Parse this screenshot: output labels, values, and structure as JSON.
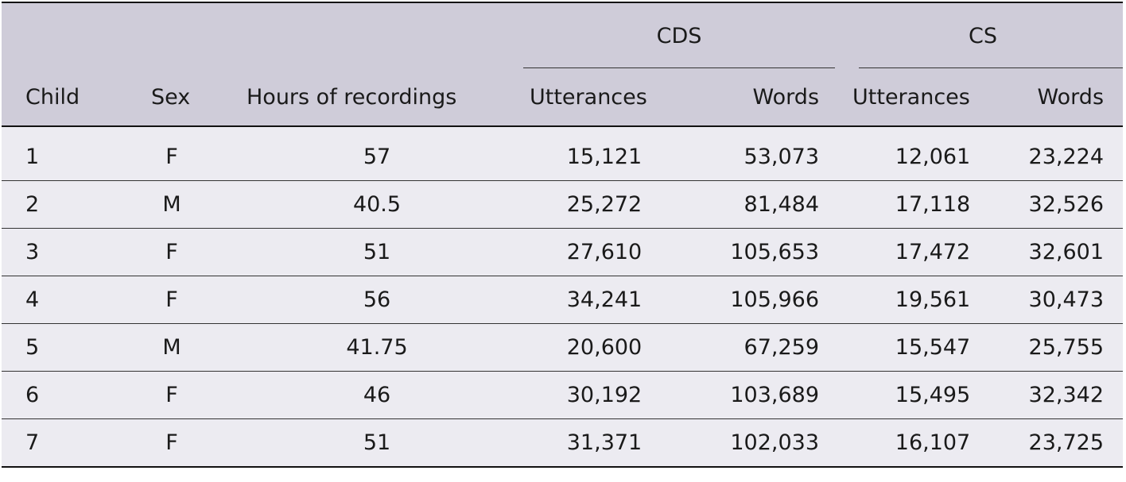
{
  "table": {
    "headers": {
      "child": "Child",
      "sex": "Sex",
      "hours": "Hours of recordings",
      "group_cds": "CDS",
      "group_cs": "CS",
      "cds_utterances": "Utterances",
      "cds_words": "Words",
      "cs_utterances": "Utterances",
      "cs_words": "Words"
    },
    "rows": [
      {
        "child": "1",
        "sex": "F",
        "hours": "57",
        "cds_utt": "15,121",
        "cds_words": "53,073",
        "cs_utt": "12,061",
        "cs_words": "23,224"
      },
      {
        "child": "2",
        "sex": "M",
        "hours": "40.5",
        "cds_utt": "25,272",
        "cds_words": "81,484",
        "cs_utt": "17,118",
        "cs_words": "32,526"
      },
      {
        "child": "3",
        "sex": "F",
        "hours": "51",
        "cds_utt": "27,610",
        "cds_words": "105,653",
        "cs_utt": "17,472",
        "cs_words": "32,601"
      },
      {
        "child": "4",
        "sex": "F",
        "hours": "56",
        "cds_utt": "34,241",
        "cds_words": "105,966",
        "cs_utt": "19,561",
        "cs_words": "30,473"
      },
      {
        "child": "5",
        "sex": "M",
        "hours": "41.75",
        "cds_utt": "20,600",
        "cds_words": "67,259",
        "cs_utt": "15,547",
        "cs_words": "25,755"
      },
      {
        "child": "6",
        "sex": "F",
        "hours": "46",
        "cds_utt": "30,192",
        "cds_words": "103,689",
        "cs_utt": "15,495",
        "cs_words": "32,342"
      },
      {
        "child": "7",
        "sex": "F",
        "hours": "51",
        "cds_utt": "31,371",
        "cds_words": "102,033",
        "cs_utt": "16,107",
        "cs_words": "23,725"
      }
    ]
  },
  "colors": {
    "header_bg": "#cfccd9",
    "body_bg": "#ecebf1",
    "rule": "#111111"
  }
}
